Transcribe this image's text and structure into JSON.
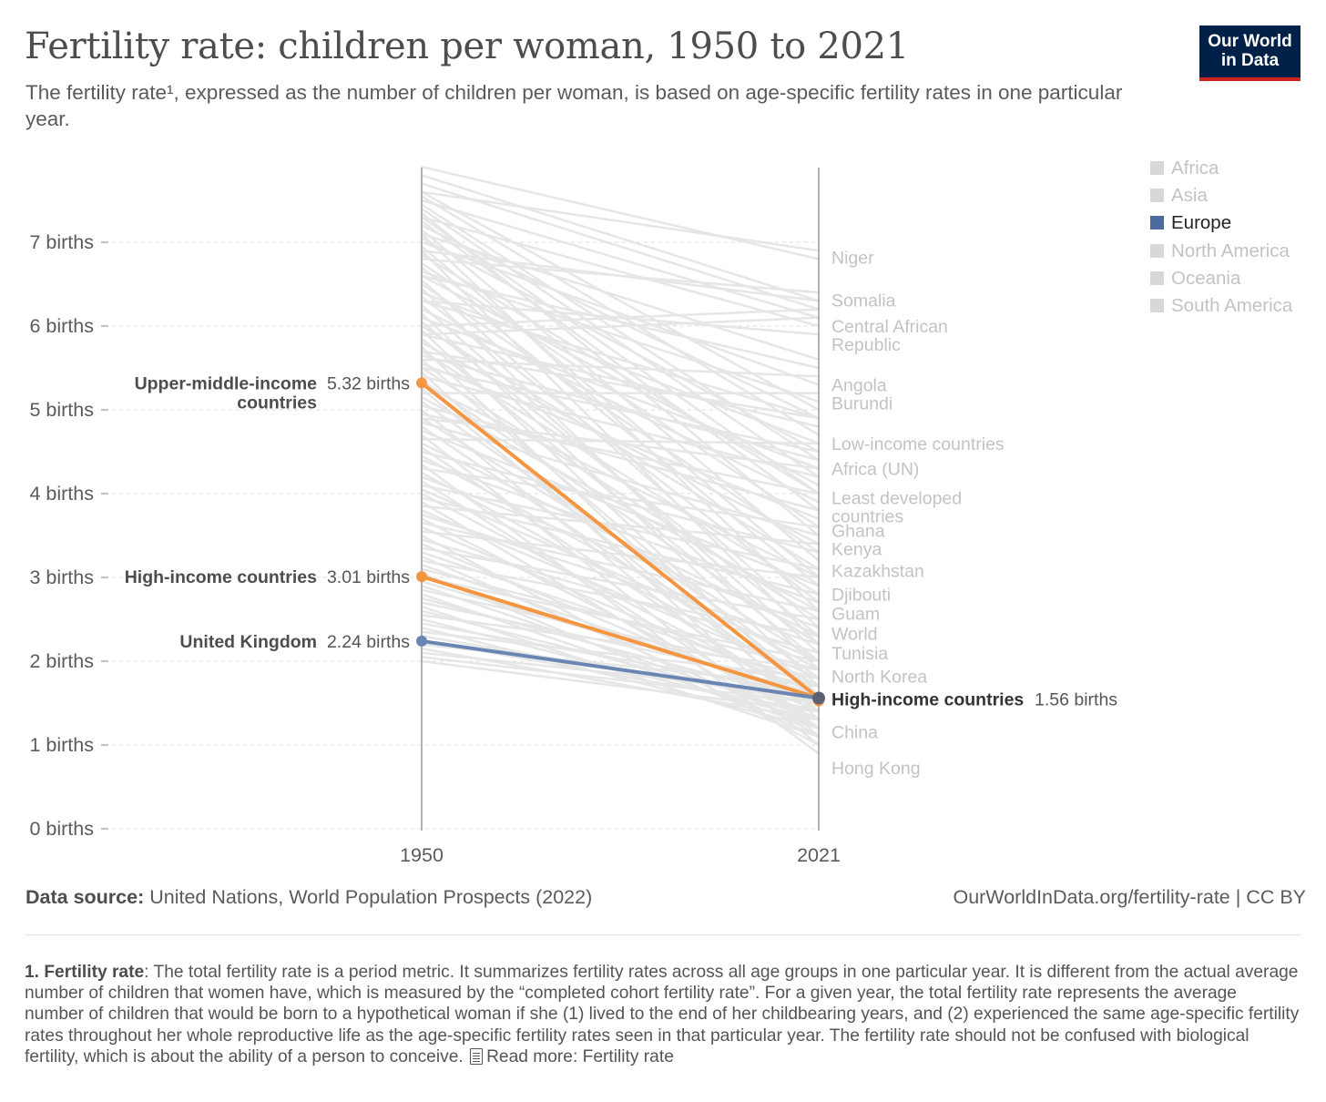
{
  "title": "Fertility rate: children per woman, 1950 to 2021",
  "subtitle": "The fertility rate¹, expressed as the number of children per woman, is based on age-specific fertility rates in one particular year.",
  "logo": {
    "line1": "Our World",
    "line2": "in Data",
    "bg": "#002147",
    "accent": "#ce261e"
  },
  "legend": [
    {
      "label": "Africa",
      "active": false
    },
    {
      "label": "Asia",
      "active": false
    },
    {
      "label": "Europe",
      "active": true
    },
    {
      "label": "North America",
      "active": false
    },
    {
      "label": "Oceania",
      "active": false
    },
    {
      "label": "South America",
      "active": false
    }
  ],
  "colors": {
    "background_line": "#e6e6e6",
    "highlight_orange": "#f49641",
    "highlight_blue": "#6b85b3",
    "axis": "#999999",
    "grid": "#dddddd",
    "muted_label": "#c3c3c3"
  },
  "chart_data": {
    "type": "line",
    "x": [
      1950,
      2021
    ],
    "ylim": [
      0,
      8
    ],
    "yticks": [
      0,
      1,
      2,
      3,
      4,
      5,
      6,
      7
    ],
    "ytick_suffix": "births",
    "grid": true,
    "highlighted": [
      {
        "name": "Upper-middle-income countries",
        "values": [
          5.32,
          1.56
        ],
        "color": "#f49641",
        "start_label": "5.32 births"
      },
      {
        "name": "High-income countries",
        "values": [
          3.01,
          1.56
        ],
        "color": "#f49641",
        "start_label": "3.01 births"
      },
      {
        "name": "United Kingdom",
        "values": [
          2.24,
          1.56
        ],
        "color": "#6b85b3",
        "start_label": "2.24 births"
      }
    ],
    "end_label": {
      "name": "High-income countries",
      "value": "1.56 births",
      "y": 1.56
    },
    "end_country_labels": [
      {
        "name": "Niger",
        "y": 6.82
      },
      {
        "name": "Somalia",
        "y": 6.31
      },
      {
        "name": "Central African Republic",
        "y": 6.0
      },
      {
        "name": "Angola",
        "y": 5.3
      },
      {
        "name": "Burundi",
        "y": 5.08
      },
      {
        "name": "Low-income countries",
        "y": 4.6
      },
      {
        "name": "Africa (UN)",
        "y": 4.3
      },
      {
        "name": "Least developed countries",
        "y": 3.95
      },
      {
        "name": "Ghana",
        "y": 3.56
      },
      {
        "name": "Kenya",
        "y": 3.34
      },
      {
        "name": "Kazakhstan",
        "y": 3.08
      },
      {
        "name": "Djibouti",
        "y": 2.8
      },
      {
        "name": "Guam",
        "y": 2.57
      },
      {
        "name": "World",
        "y": 2.33
      },
      {
        "name": "Tunisia",
        "y": 2.1
      },
      {
        "name": "North Korea",
        "y": 1.82
      },
      {
        "name": "China",
        "y": 1.16
      },
      {
        "name": "Hong Kong",
        "y": 0.73
      }
    ],
    "background_lines": [
      [
        7.9,
        6.8
      ],
      [
        7.8,
        6.3
      ],
      [
        7.7,
        6.2
      ],
      [
        7.6,
        5.0
      ],
      [
        7.55,
        4.7
      ],
      [
        7.5,
        6.1
      ],
      [
        7.45,
        4.4
      ],
      [
        7.4,
        4.2
      ],
      [
        7.35,
        3.5
      ],
      [
        7.3,
        6.0
      ],
      [
        7.25,
        3.8
      ],
      [
        7.2,
        4.9
      ],
      [
        7.15,
        3.2
      ],
      [
        7.1,
        2.6
      ],
      [
        7.05,
        4.5
      ],
      [
        7.0,
        5.3
      ],
      [
        6.95,
        3.0
      ],
      [
        6.9,
        2.2
      ],
      [
        6.85,
        4.0
      ],
      [
        6.8,
        6.4
      ],
      [
        6.75,
        3.6
      ],
      [
        6.7,
        2.9
      ],
      [
        6.65,
        5.1
      ],
      [
        6.6,
        4.1
      ],
      [
        6.55,
        2.4
      ],
      [
        6.5,
        3.3
      ],
      [
        6.45,
        1.9
      ],
      [
        6.4,
        4.6
      ],
      [
        6.35,
        2.7
      ],
      [
        6.3,
        5.9
      ],
      [
        6.25,
        2.1
      ],
      [
        6.2,
        3.9
      ],
      [
        6.15,
        1.7
      ],
      [
        6.1,
        4.3
      ],
      [
        6.05,
        2.3
      ],
      [
        6.0,
        3.1
      ],
      [
        5.95,
        1.5
      ],
      [
        5.9,
        4.8
      ],
      [
        5.85,
        2.0
      ],
      [
        5.8,
        3.4
      ],
      [
        5.75,
        1.3
      ],
      [
        5.7,
        2.8
      ],
      [
        5.65,
        4.4
      ],
      [
        5.6,
        1.6
      ],
      [
        5.55,
        3.7
      ],
      [
        5.5,
        2.5
      ],
      [
        5.45,
        1.1
      ],
      [
        5.4,
        4.2
      ],
      [
        5.35,
        2.2
      ],
      [
        5.3,
        3.0
      ],
      [
        5.25,
        1.4
      ],
      [
        5.2,
        5.2
      ],
      [
        5.15,
        2.6
      ],
      [
        5.1,
        1.8
      ],
      [
        5.05,
        3.8
      ],
      [
        5.0,
        1.2
      ],
      [
        4.95,
        4.0
      ],
      [
        4.9,
        2.0
      ],
      [
        4.85,
        3.5
      ],
      [
        4.8,
        1.6
      ],
      [
        4.75,
        2.9
      ],
      [
        4.7,
        1.0
      ],
      [
        4.65,
        4.6
      ],
      [
        4.6,
        2.3
      ],
      [
        4.55,
        1.4
      ],
      [
        4.5,
        3.3
      ],
      [
        4.45,
        1.9
      ],
      [
        4.4,
        2.7
      ],
      [
        4.35,
        0.9
      ],
      [
        4.3,
        3.6
      ],
      [
        4.25,
        1.7
      ],
      [
        4.2,
        2.4
      ],
      [
        4.15,
        1.2
      ],
      [
        4.1,
        3.1
      ],
      [
        4.05,
        2.0
      ],
      [
        4.0,
        1.5
      ],
      [
        3.95,
        2.8
      ],
      [
        3.9,
        1.1
      ],
      [
        3.85,
        3.4
      ],
      [
        3.8,
        1.8
      ],
      [
        3.75,
        2.2
      ],
      [
        3.7,
        1.3
      ],
      [
        3.65,
        2.6
      ],
      [
        3.6,
        1.6
      ],
      [
        3.55,
        3.0
      ],
      [
        3.5,
        1.0
      ],
      [
        3.45,
        2.1
      ],
      [
        3.4,
        1.4
      ],
      [
        3.35,
        2.5
      ],
      [
        3.3,
        1.7
      ],
      [
        3.25,
        1.2
      ],
      [
        3.2,
        2.3
      ],
      [
        3.15,
        1.5
      ],
      [
        3.1,
        1.9
      ],
      [
        3.05,
        1.1
      ],
      [
        3.0,
        2.0
      ],
      [
        2.95,
        1.6
      ],
      [
        2.9,
        1.3
      ],
      [
        2.85,
        1.8
      ],
      [
        2.8,
        1.2
      ],
      [
        2.75,
        1.5
      ],
      [
        2.7,
        1.7
      ],
      [
        2.65,
        1.1
      ],
      [
        2.6,
        1.4
      ],
      [
        2.55,
        1.9
      ],
      [
        2.5,
        1.3
      ],
      [
        2.45,
        1.6
      ],
      [
        2.4,
        1.2
      ],
      [
        2.35,
        1.8
      ],
      [
        2.3,
        1.5
      ],
      [
        2.25,
        1.4
      ],
      [
        2.2,
        1.7
      ],
      [
        2.15,
        1.3
      ],
      [
        2.1,
        1.6
      ],
      [
        2.05,
        1.5
      ],
      [
        2.0,
        1.4
      ],
      [
        6.0,
        6.2
      ],
      [
        5.9,
        6.1
      ],
      [
        5.6,
        5.4
      ],
      [
        5.7,
        4.9
      ],
      [
        7.6,
        6.9
      ],
      [
        6.9,
        6.3
      ],
      [
        5.5,
        4.5
      ],
      [
        6.3,
        4.9
      ],
      [
        7.1,
        5.6
      ],
      [
        4.9,
        4.3
      ],
      [
        6.6,
        5.5
      ],
      [
        7.3,
        4.0
      ]
    ]
  },
  "source": {
    "label": "Data source:",
    "text": "United Nations, World Population Prospects (2022)"
  },
  "url": "OurWorldInData.org/fertility-rate | CC BY",
  "footnote": {
    "label": "1. Fertility rate",
    "text": ": The total fertility rate is a period metric. It summarizes fertility rates across all age groups in one particular year. It is different from the actual average number of children that women have, which is measured by the “completed cohort fertility rate”. For a given year, the total fertility rate represents the average number of children that would be born to a hypothetical woman if she (1) lived to the end of her childbearing years, and (2) experienced the same age-specific fertility rates throughout her whole reproductive life as the age-specific fertility rates seen in that particular year. The fertility rate should not be confused with biological fertility, which is about the ability of a person to conceive.",
    "read_more": "Read more: Fertility rate"
  }
}
